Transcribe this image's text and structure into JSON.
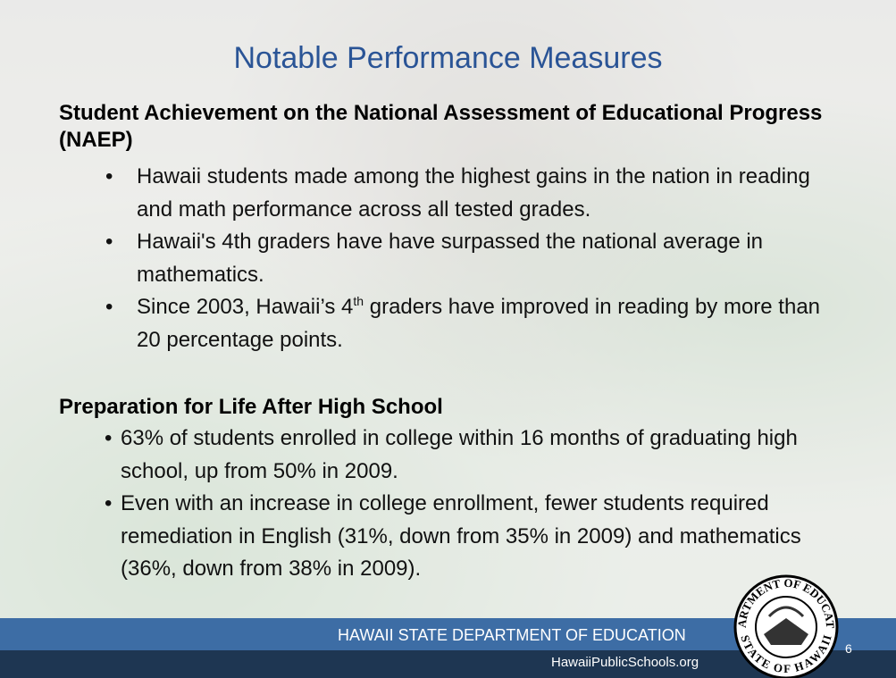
{
  "title": "Notable Performance Measures",
  "sections": [
    {
      "heading": "Student Achievement on the National Assessment of Educational Progress (NAEP)",
      "bullets": [
        "Hawaii students made among the highest gains in the nation in reading and math performance across all tested grades.",
        "Hawaii's 4th graders have have surpassed the national average in mathematics.",
        {
          "before": "Since 2003, Hawaii’s 4",
          "sup": "th",
          "after": " graders have improved in reading by more than 20 percentage points."
        }
      ]
    },
    {
      "heading": "Preparation for Life After High School",
      "bullets": [
        "63% of students enrolled in college within 16 months of graduating high school, up from 50% in 2009.",
        "Even with an increase in college enrollment, fewer students required remediation in English (31%, down from 35% in 2009) and mathematics (36%, down from 38% in 2009)."
      ]
    }
  ],
  "footer": {
    "org": "HAWAII STATE DEPARTMENT OF EDUCATION",
    "url": "HawaiiPublicSchools.org",
    "page": "6"
  },
  "seal": {
    "top": "DEPARTMENT OF EDUCATION",
    "bottom": "STATE OF HAWAII"
  }
}
